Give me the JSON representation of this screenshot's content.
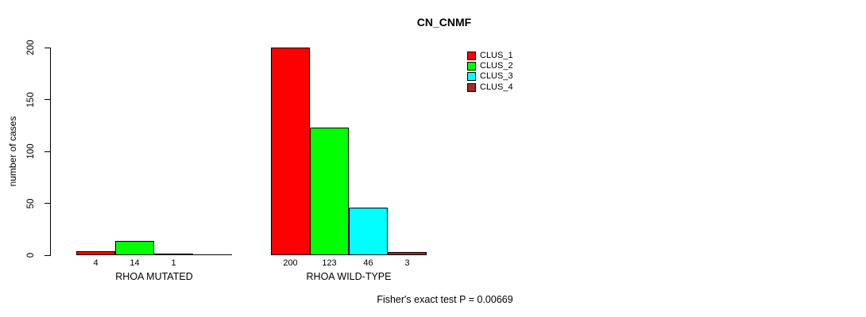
{
  "title": "CN_CNMF",
  "y_axis_title": "number of cases",
  "annotation": "Fisher's exact test P = 0.00669",
  "chart_data": {
    "type": "bar",
    "title": "CN_CNMF",
    "xlabel": "",
    "ylabel": "number of cases",
    "ylim": [
      0,
      200
    ],
    "yticks": [
      "0",
      "50",
      "100",
      "150",
      "200"
    ],
    "grid": false,
    "legend_position": "top-right",
    "categories": [
      "RHOA MUTATED",
      "RHOA WILD-TYPE"
    ],
    "series": [
      {
        "name": "CLUS_1",
        "color": "#ff0000",
        "values": [
          4,
          200
        ]
      },
      {
        "name": "CLUS_2",
        "color": "#00ff00",
        "values": [
          14,
          123
        ]
      },
      {
        "name": "CLUS_3",
        "color": "#00ffff",
        "values": [
          1,
          46
        ]
      },
      {
        "name": "CLUS_4",
        "color": "#a52a2a",
        "values": [
          0,
          3
        ]
      }
    ],
    "bar_value_labels": [
      [
        "4",
        "14",
        "1",
        ""
      ],
      [
        "200",
        "123",
        "46",
        "3"
      ]
    ],
    "annotation": "Fisher's exact test P = 0.00669",
    "axis_color": "#000000",
    "background_color": "#ffffff"
  }
}
